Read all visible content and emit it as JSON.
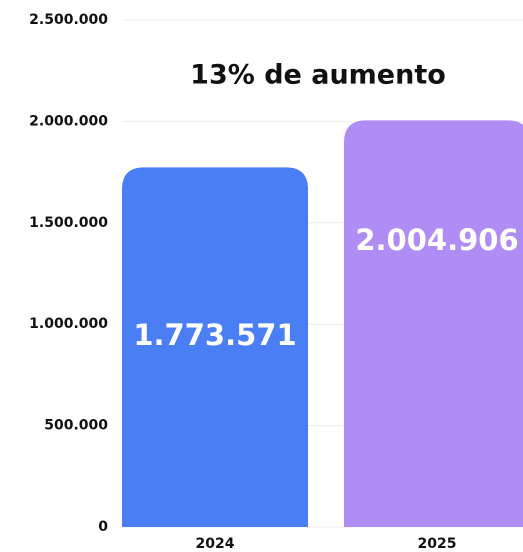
{
  "chart_data": {
    "type": "bar",
    "annotation": "13% de aumento",
    "categories": [
      "2024",
      "2025"
    ],
    "values": [
      1773571,
      2004906
    ],
    "value_labels": [
      "1.773.571",
      "2.004.906"
    ],
    "colors": [
      "#4a7ef5",
      "#b08cf5"
    ],
    "ylim": [
      0,
      2500000
    ],
    "yticks": [
      0,
      {
        "value": 500000,
        "label": "500.000"
      },
      {
        "value": 1000000,
        "label": "1.000.000"
      },
      {
        "value": 1500000,
        "label": "1.500.000"
      },
      {
        "value": 2000000,
        "label": "2.000.000"
      },
      {
        "value": 2500000,
        "label": "2.500.000"
      }
    ],
    "grid": true
  }
}
